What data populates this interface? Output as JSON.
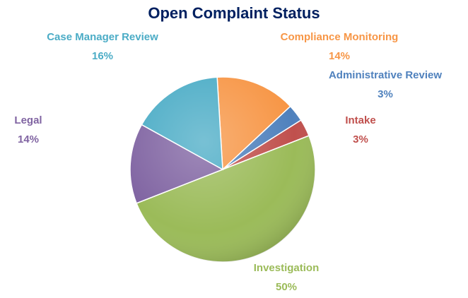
{
  "chart_data": {
    "type": "pie",
    "title": "Open Complaint Status",
    "categories": [
      "Compliance Monitoring",
      "Administrative Review",
      "Intake",
      "Investigation",
      "Legal",
      "Case Manager Review"
    ],
    "values": [
      14,
      3,
      3,
      50,
      14,
      16
    ],
    "value_labels": [
      "14%",
      "3%",
      "3%",
      "50%",
      "14%",
      "16%"
    ],
    "colors": [
      "#f79646",
      "#4f81bd",
      "#c0504d",
      "#9bbb59",
      "#8064a2",
      "#4bacc6"
    ]
  }
}
